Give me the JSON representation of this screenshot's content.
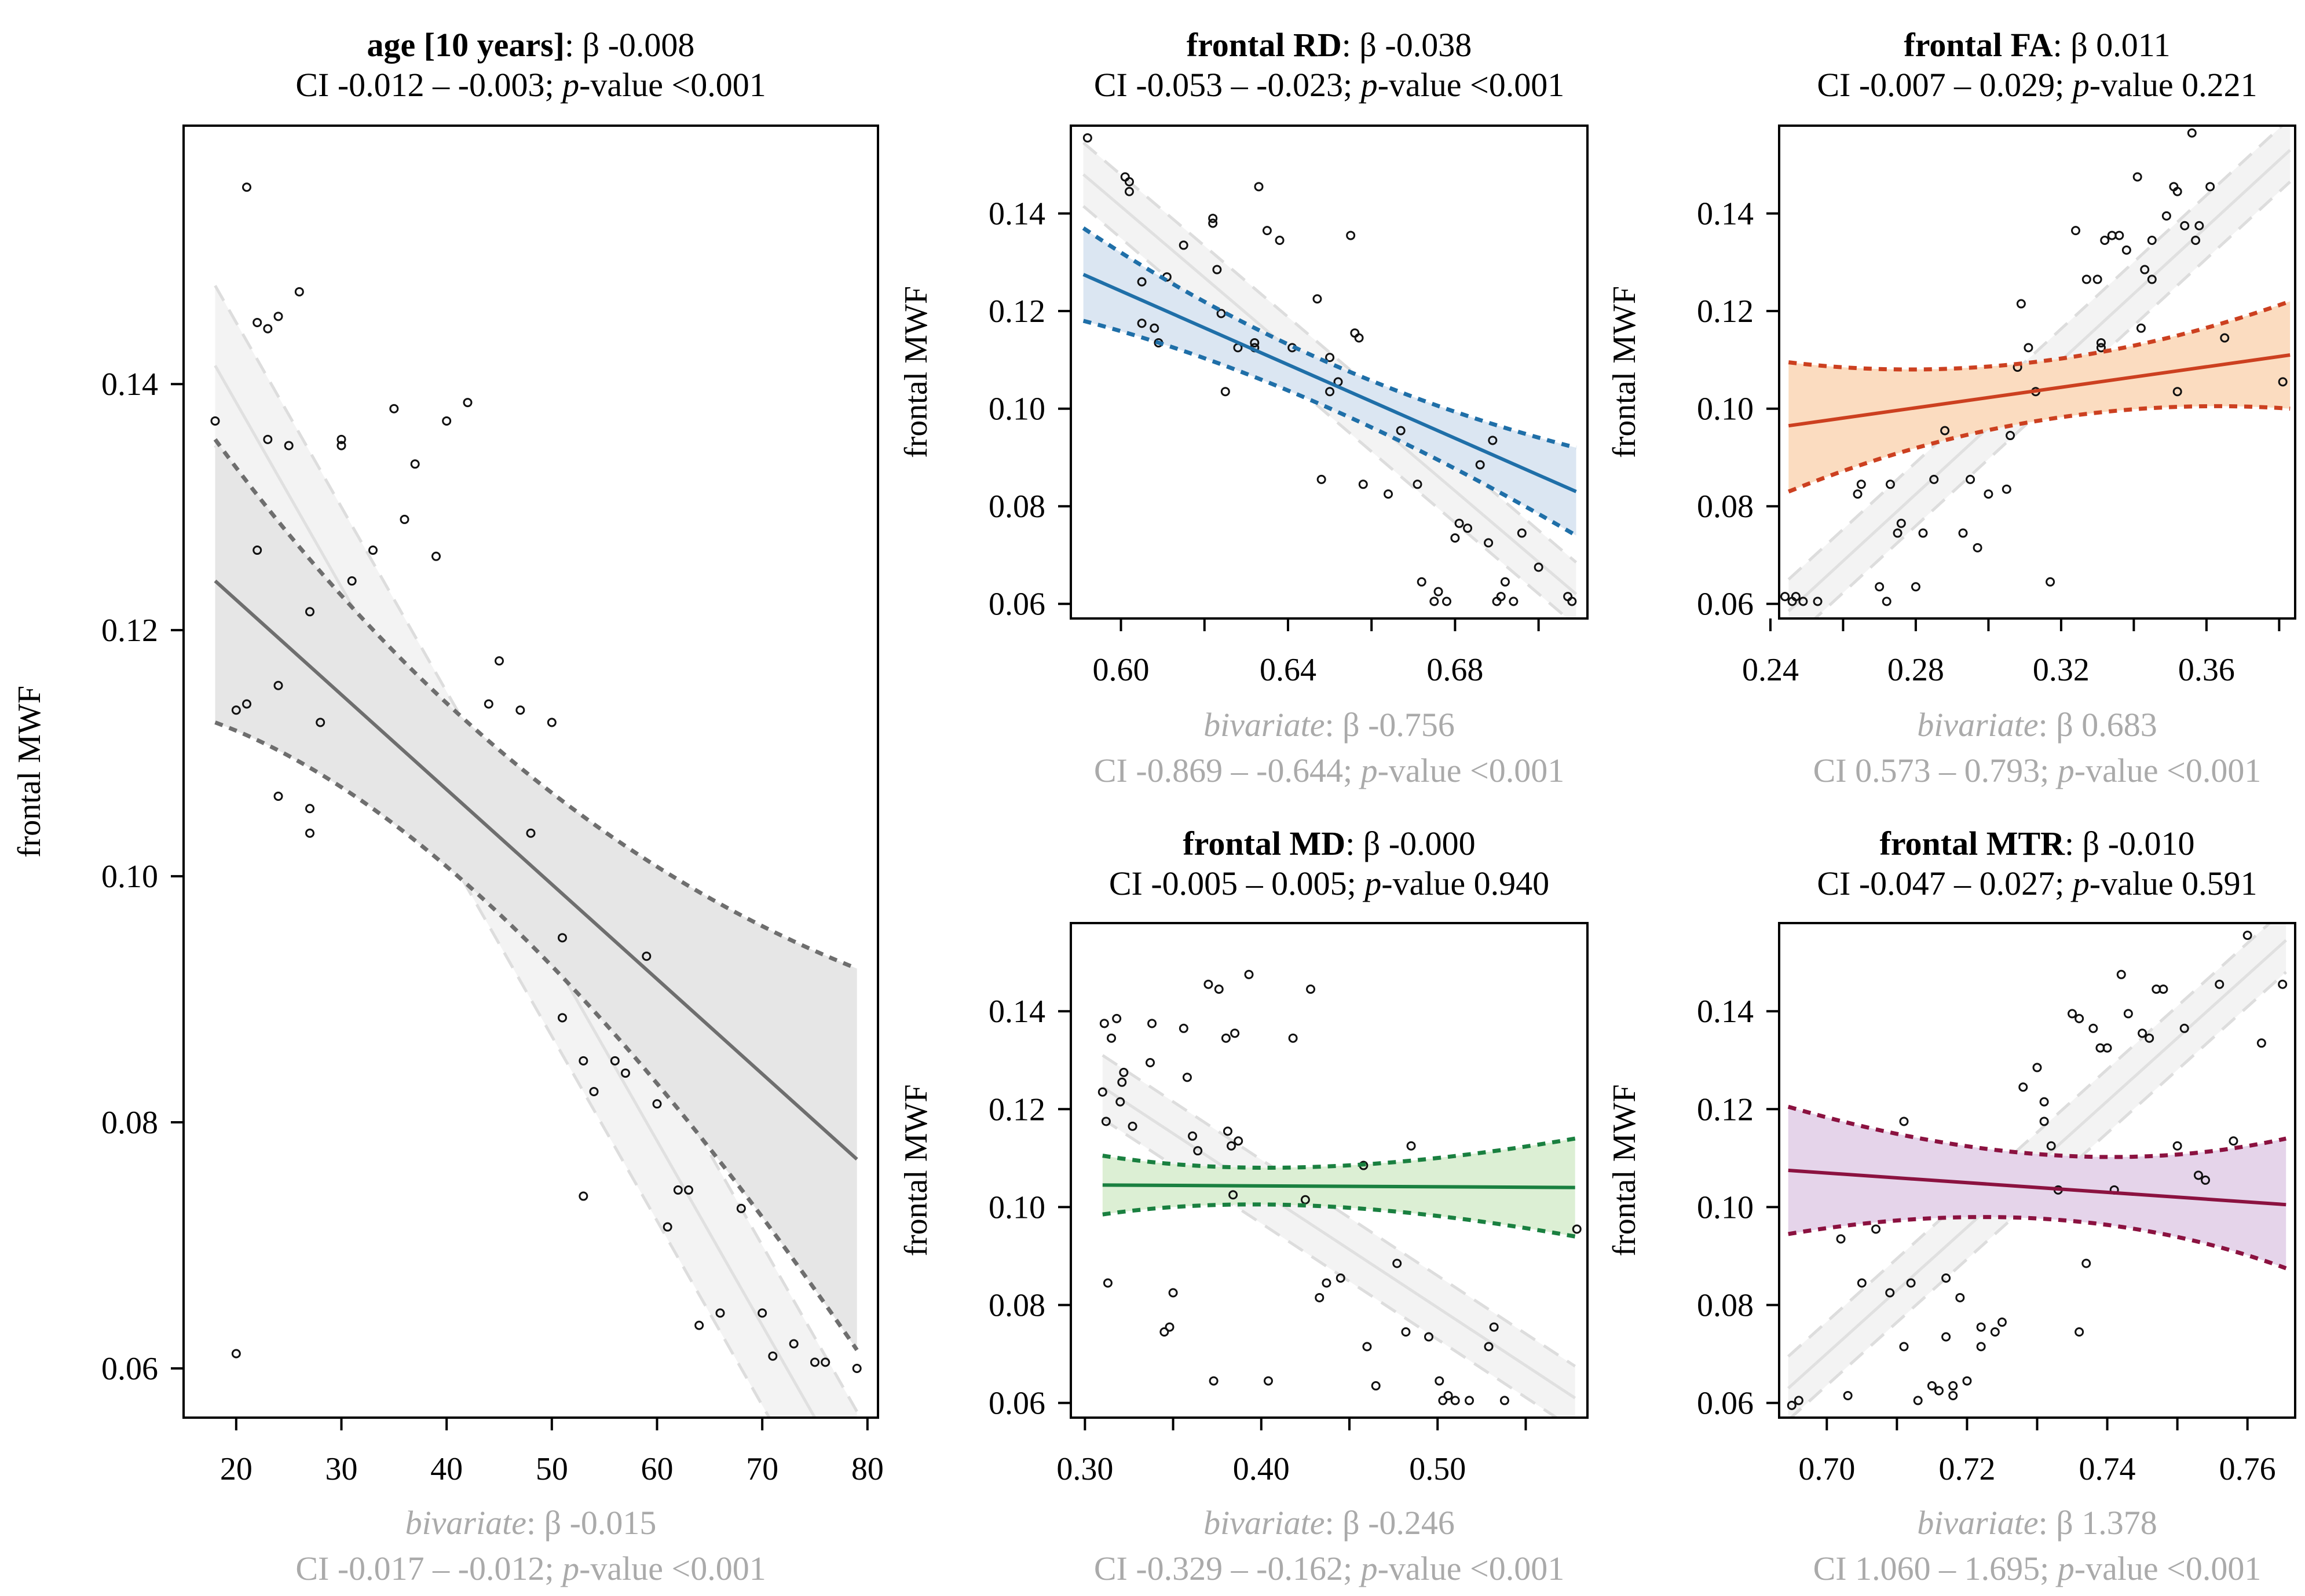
{
  "chart_data": [
    {
      "id": "age",
      "type": "scatter",
      "title_var": "age [10 years]",
      "title_beta": ": β -0.008",
      "title_ci": "CI -0.012 – -0.003; ",
      "title_p": "-value <0.001",
      "ylabel": "frontal MWF",
      "xlim": [
        15,
        81
      ],
      "ylim": [
        0.056,
        0.161
      ],
      "xticks": [
        20,
        30,
        40,
        50,
        60,
        70,
        80
      ],
      "xtick_labels": [
        "20",
        "30",
        "40",
        "50",
        "60",
        "70",
        "80"
      ],
      "yticks": [
        0.06,
        0.08,
        0.1,
        0.12,
        0.14
      ],
      "ytick_labels": [
        "0.06",
        "0.08",
        "0.10",
        "0.12",
        "0.14"
      ],
      "color": "#6e6e6e",
      "fill": "#e6e6e6",
      "adjusted_fit": {
        "x": [
          18,
          79
        ],
        "y": [
          0.124,
          0.077
        ],
        "ci_low_at_x0": 0.1125,
        "ci_high_at_x0": 0.1355,
        "ci_low_at_x1": 0.0615,
        "ci_high_at_x1": 0.0925,
        "ci_pinch": [
          45,
          0.104
        ]
      },
      "bivariate_fit": {
        "x": [
          18,
          79
        ],
        "y": [
          0.1415,
          0.05
        ],
        "band": 0.0065
      },
      "points_x": [
        18,
        21,
        22,
        23,
        23,
        24,
        24,
        25,
        26,
        27,
        28,
        30,
        30,
        31,
        33,
        35,
        36,
        37,
        39,
        40,
        42,
        44,
        45,
        47,
        48,
        50,
        51,
        51,
        53,
        53,
        54,
        56,
        57,
        59,
        60,
        61,
        62,
        63,
        64,
        66,
        68,
        70,
        71,
        73,
        75,
        76,
        79,
        20,
        21,
        22,
        24,
        27,
        27,
        20
      ],
      "points_y": [
        0.137,
        0.156,
        0.145,
        0.1445,
        0.1355,
        0.1455,
        0.1155,
        0.135,
        0.1475,
        0.1215,
        0.1125,
        0.1355,
        0.135,
        0.124,
        0.1265,
        0.138,
        0.129,
        0.1335,
        0.126,
        0.137,
        0.1385,
        0.114,
        0.1175,
        0.1135,
        0.1035,
        0.1125,
        0.095,
        0.0885,
        0.085,
        0.074,
        0.0825,
        0.085,
        0.084,
        0.0935,
        0.0815,
        0.0715,
        0.0745,
        0.0745,
        0.0635,
        0.0645,
        0.073,
        0.0645,
        0.061,
        0.062,
        0.0605,
        0.0605,
        0.06,
        0.0612,
        0.114,
        0.1265,
        0.1065,
        0.1055,
        0.1035,
        0.1135
      ],
      "biv_label": "bivariate",
      "biv_beta": ": β -0.015",
      "biv_ci": "CI -0.017 – -0.012; ",
      "biv_p": "-value <0.001"
    },
    {
      "id": "rd",
      "type": "scatter",
      "title_var": "frontal RD",
      "title_beta": ": β -0.038",
      "title_ci": "CI -0.053 – -0.023; ",
      "title_p": "-value <0.001",
      "ylabel": "frontal MWF",
      "xlim": [
        0.588,
        0.7117
      ],
      "ylim": [
        0.057,
        0.158
      ],
      "xticks": [
        0.6,
        0.62,
        0.64,
        0.66,
        0.68,
        0.7
      ],
      "xtick_labels": [
        "0.60",
        "",
        "0.64",
        "",
        "0.68",
        ""
      ],
      "yticks": [
        0.06,
        0.08,
        0.1,
        0.12,
        0.14
      ],
      "ytick_labels": [
        "0.06",
        "0.08",
        "0.10",
        "0.12",
        "0.14"
      ],
      "color": "#1f6fa8",
      "fill": "#dbe6f2",
      "adjusted_fit": {
        "x": [
          0.591,
          0.709
        ],
        "y": [
          0.1275,
          0.083
        ],
        "ci_low_at_x0": 0.118,
        "ci_high_at_x0": 0.137,
        "ci_low_at_x1": 0.074,
        "ci_high_at_x1": 0.092,
        "ci_pinch": [
          0.645,
          0.106
        ]
      },
      "bivariate_fit": {
        "x": [
          0.591,
          0.709
        ],
        "y": [
          0.148,
          0.062
        ],
        "band": 0.0065
      },
      "points_x": [
        0.592,
        0.601,
        0.602,
        0.602,
        0.605,
        0.608,
        0.611,
        0.615,
        0.622,
        0.622,
        0.623,
        0.624,
        0.625,
        0.628,
        0.632,
        0.633,
        0.635,
        0.638,
        0.641,
        0.647,
        0.648,
        0.65,
        0.652,
        0.655,
        0.656,
        0.657,
        0.658,
        0.664,
        0.667,
        0.671,
        0.672,
        0.675,
        0.676,
        0.678,
        0.68,
        0.681,
        0.683,
        0.686,
        0.688,
        0.69,
        0.691,
        0.692,
        0.694,
        0.696,
        0.7,
        0.707,
        0.708,
        0.609,
        0.632,
        0.605,
        0.65,
        0.689
      ],
      "points_y": [
        0.1555,
        0.1475,
        0.1445,
        0.1465,
        0.126,
        0.1165,
        0.127,
        0.1335,
        0.139,
        0.138,
        0.1285,
        0.1195,
        0.1035,
        0.1125,
        0.1135,
        0.1455,
        0.1365,
        0.1345,
        0.1125,
        0.1225,
        0.0855,
        0.1035,
        0.1055,
        0.1355,
        0.1155,
        0.1145,
        0.0845,
        0.0825,
        0.0955,
        0.0845,
        0.0645,
        0.0605,
        0.0625,
        0.0605,
        0.0735,
        0.0765,
        0.0755,
        0.0885,
        0.0725,
        0.0605,
        0.0615,
        0.0645,
        0.0605,
        0.0745,
        0.0675,
        0.0615,
        0.0605,
        0.1135,
        0.1125,
        0.1175,
        0.1105,
        0.0935
      ],
      "biv_label": "bivariate",
      "biv_beta": ": β -0.756",
      "biv_ci": "CI -0.869 – -0.644; ",
      "biv_p": "-value <0.001"
    },
    {
      "id": "fa",
      "type": "scatter",
      "title_var": "frontal FA",
      "title_beta": ": β 0.011",
      "title_ci": "CI -0.007 – 0.029; ",
      "title_p": "-value 0.221",
      "ylabel": "frontal MWF",
      "xlim": [
        0.2424,
        0.3844
      ],
      "ylim": [
        0.057,
        0.158
      ],
      "xticks": [
        0.24,
        0.26,
        0.28,
        0.3,
        0.32,
        0.34,
        0.36,
        0.38
      ],
      "xtick_labels": [
        "0.24",
        "",
        "0.28",
        "",
        "0.32",
        "",
        "0.36",
        ""
      ],
      "yticks": [
        0.06,
        0.08,
        0.1,
        0.12,
        0.14
      ],
      "ytick_labels": [
        "0.06",
        "0.08",
        "0.10",
        "0.12",
        "0.14"
      ],
      "color": "#cc4020",
      "fill": "#fbdcc0",
      "adjusted_fit": {
        "x": [
          0.245,
          0.383
        ],
        "y": [
          0.0965,
          0.111
        ],
        "ci_low_at_x0": 0.083,
        "ci_high_at_x0": 0.1095,
        "ci_low_at_x1": 0.1,
        "ci_high_at_x1": 0.122,
        "ci_pinch": [
          0.313,
          0.1035
        ]
      },
      "bivariate_fit": {
        "x": [
          0.245,
          0.383
        ],
        "y": [
          0.0585,
          0.153
        ],
        "band": 0.0065
      },
      "points_x": [
        0.246,
        0.247,
        0.249,
        0.253,
        0.264,
        0.265,
        0.27,
        0.272,
        0.273,
        0.275,
        0.28,
        0.282,
        0.285,
        0.288,
        0.293,
        0.295,
        0.297,
        0.3,
        0.305,
        0.306,
        0.308,
        0.309,
        0.311,
        0.313,
        0.317,
        0.324,
        0.327,
        0.33,
        0.331,
        0.331,
        0.332,
        0.334,
        0.336,
        0.338,
        0.341,
        0.342,
        0.343,
        0.345,
        0.345,
        0.349,
        0.351,
        0.352,
        0.354,
        0.356,
        0.357,
        0.358,
        0.361,
        0.365,
        0.381,
        0.244,
        0.276,
        0.352
      ],
      "points_y": [
        0.0605,
        0.0615,
        0.0605,
        0.0605,
        0.0825,
        0.0845,
        0.0635,
        0.0605,
        0.0845,
        0.0745,
        0.0635,
        0.0745,
        0.0855,
        0.0955,
        0.0745,
        0.0855,
        0.0715,
        0.0825,
        0.0835,
        0.0945,
        0.1085,
        0.1215,
        0.1125,
        0.1035,
        0.0645,
        0.1365,
        0.1265,
        0.1265,
        0.1125,
        0.1135,
        0.1345,
        0.1355,
        0.1355,
        0.1325,
        0.1475,
        0.1165,
        0.1285,
        0.1345,
        0.1265,
        0.1395,
        0.1455,
        0.1445,
        0.1375,
        0.1565,
        0.1345,
        0.1375,
        0.1455,
        0.1145,
        0.1055,
        0.0615,
        0.0765,
        0.1035
      ],
      "biv_label": "bivariate",
      "biv_beta": ": β 0.683",
      "biv_ci": "CI 0.573 – 0.793; ",
      "biv_p": "-value <0.001"
    },
    {
      "id": "md",
      "type": "scatter",
      "title_var": "frontal MD",
      "title_beta": ": β -0.000",
      "title_ci": "CI -0.005 – 0.005; ",
      "title_p": "-value 0.940",
      "ylabel": "frontal MWF",
      "xlim": [
        0.292,
        0.585
      ],
      "ylim": [
        0.057,
        0.158
      ],
      "xticks": [
        0.3,
        0.35,
        0.4,
        0.45,
        0.5,
        0.55
      ],
      "xtick_labels": [
        "0.30",
        "",
        "0.40",
        "",
        "0.50",
        ""
      ],
      "yticks": [
        0.06,
        0.08,
        0.1,
        0.12,
        0.14
      ],
      "ytick_labels": [
        "0.06",
        "0.08",
        "0.10",
        "0.12",
        "0.14"
      ],
      "color": "#1a8040",
      "fill": "#dcefd4",
      "adjusted_fit": {
        "x": [
          0.31,
          0.578
        ],
        "y": [
          0.1045,
          0.104
        ],
        "ci_low_at_x0": 0.0985,
        "ci_high_at_x0": 0.1105,
        "ci_low_at_x1": 0.094,
        "ci_high_at_x1": 0.114,
        "ci_pinch": [
          0.42,
          0.1042
        ]
      },
      "bivariate_fit": {
        "x": [
          0.31,
          0.578
        ],
        "y": [
          0.1245,
          0.061
        ],
        "band": 0.0065
      },
      "points_x": [
        0.31,
        0.311,
        0.312,
        0.313,
        0.315,
        0.318,
        0.32,
        0.321,
        0.322,
        0.327,
        0.337,
        0.338,
        0.345,
        0.348,
        0.35,
        0.356,
        0.358,
        0.361,
        0.364,
        0.37,
        0.373,
        0.376,
        0.38,
        0.381,
        0.383,
        0.384,
        0.385,
        0.387,
        0.393,
        0.404,
        0.418,
        0.425,
        0.428,
        0.433,
        0.437,
        0.445,
        0.458,
        0.46,
        0.465,
        0.477,
        0.482,
        0.485,
        0.495,
        0.501,
        0.503,
        0.506,
        0.51,
        0.518,
        0.529,
        0.532,
        0.538,
        0.579
      ],
      "points_y": [
        0.1235,
        0.1375,
        0.1175,
        0.0845,
        0.1345,
        0.1385,
        0.1215,
        0.1255,
        0.1275,
        0.1165,
        0.1295,
        0.1375,
        0.0745,
        0.0755,
        0.0825,
        0.1365,
        0.1265,
        0.1145,
        0.1115,
        0.1455,
        0.0645,
        0.1445,
        0.1345,
        0.1155,
        0.1125,
        0.1025,
        0.1355,
        0.1135,
        0.1475,
        0.0645,
        0.1345,
        0.1015,
        0.1445,
        0.0815,
        0.0845,
        0.0855,
        0.1085,
        0.0715,
        0.0635,
        0.0885,
        0.0745,
        0.1125,
        0.0735,
        0.0645,
        0.0605,
        0.0615,
        0.0605,
        0.0605,
        0.0715,
        0.0755,
        0.0605,
        0.0955
      ],
      "biv_label": "bivariate",
      "biv_beta": ": β -0.246",
      "biv_ci": "CI -0.329 – -0.162; ",
      "biv_p": "-value <0.001"
    },
    {
      "id": "mtr",
      "type": "scatter",
      "title_var": "frontal MTR",
      "title_beta": ": β -0.010",
      "title_ci": "CI -0.047 – 0.027; ",
      "title_p": "-value 0.591",
      "ylabel": "frontal MWF",
      "xlim": [
        0.6932,
        0.7668
      ],
      "ylim": [
        0.057,
        0.158
      ],
      "xticks": [
        0.7,
        0.71,
        0.72,
        0.73,
        0.74,
        0.75,
        0.76
      ],
      "xtick_labels": [
        "0.70",
        "",
        "0.72",
        "",
        "0.74",
        "",
        "0.76"
      ],
      "yticks": [
        0.06,
        0.08,
        0.1,
        0.12,
        0.14
      ],
      "ytick_labels": [
        "0.06",
        "0.08",
        "0.10",
        "0.12",
        "0.14"
      ],
      "color": "#8b1240",
      "fill": "#e5d4ea",
      "adjusted_fit": {
        "x": [
          0.6945,
          0.7655
        ],
        "y": [
          0.1075,
          0.1005
        ],
        "ci_low_at_x0": 0.0945,
        "ci_high_at_x0": 0.1205,
        "ci_low_at_x1": 0.0875,
        "ci_high_at_x1": 0.114,
        "ci_pinch": [
          0.734,
          0.104
        ]
      },
      "bivariate_fit": {
        "x": [
          0.6945,
          0.7655
        ],
        "y": [
          0.063,
          0.1545
        ],
        "band": 0.0065
      },
      "points_x": [
        0.695,
        0.696,
        0.702,
        0.703,
        0.705,
        0.707,
        0.709,
        0.711,
        0.711,
        0.712,
        0.713,
        0.715,
        0.716,
        0.717,
        0.717,
        0.718,
        0.718,
        0.719,
        0.72,
        0.722,
        0.724,
        0.725,
        0.728,
        0.73,
        0.731,
        0.731,
        0.732,
        0.733,
        0.735,
        0.736,
        0.737,
        0.738,
        0.739,
        0.74,
        0.742,
        0.743,
        0.745,
        0.746,
        0.747,
        0.748,
        0.75,
        0.751,
        0.753,
        0.754,
        0.756,
        0.758,
        0.76,
        0.762,
        0.765,
        0.722,
        0.736,
        0.741
      ],
      "points_y": [
        0.0595,
        0.0605,
        0.0935,
        0.0615,
        0.0845,
        0.0955,
        0.0825,
        0.0715,
        0.1175,
        0.0845,
        0.0605,
        0.0635,
        0.0625,
        0.0735,
        0.0855,
        0.0615,
        0.0635,
        0.0815,
        0.0645,
        0.0715,
        0.0745,
        0.0765,
        0.1245,
        0.1285,
        0.1175,
        0.1215,
        0.1125,
        0.1035,
        0.1395,
        0.1385,
        0.0885,
        0.1365,
        0.1325,
        0.1325,
        0.1475,
        0.1395,
        0.1355,
        0.1345,
        0.1445,
        0.1445,
        0.1125,
        0.1365,
        0.1065,
        0.1055,
        0.1455,
        0.1135,
        0.1555,
        0.1335,
        0.1455,
        0.0755,
        0.0745,
        0.1035
      ],
      "biv_label": "bivariate",
      "biv_beta": ": β 1.378",
      "biv_ci": "CI 1.060 – 1.695; ",
      "biv_p": "-value <0.001"
    }
  ]
}
